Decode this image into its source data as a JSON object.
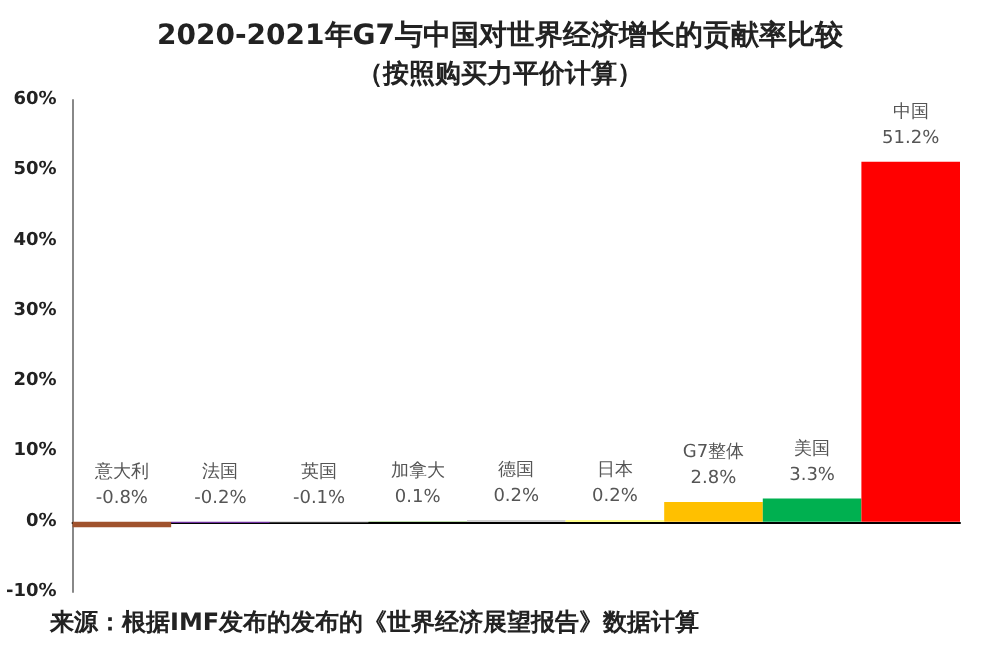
{
  "chart_data": {
    "type": "bar",
    "title": "2020-2021年G7与中国对世界经济增长的贡献率比较",
    "subtitle": "（按照购买力平价计算）",
    "categories": [
      "意大利",
      "法国",
      "英国",
      "加拿大",
      "德国",
      "日本",
      "G7整体",
      "美国",
      "中国"
    ],
    "values": [
      -0.8,
      -0.2,
      -0.1,
      0.1,
      0.2,
      0.2,
      2.8,
      3.3,
      51.2
    ],
    "colors": [
      "#a0522d",
      "#7030a0",
      "#808080",
      "#a9d18e",
      "#bfbfbf",
      "#ffff66",
      "#ffc000",
      "#00b050",
      "#ff0000"
    ],
    "value_labels": [
      "-0.8%",
      "-0.2%",
      "-0.1%",
      "0.1%",
      "0.2%",
      "0.2%",
      "2.8%",
      "3.3%",
      "51.2%"
    ],
    "ylim": [
      -10,
      60
    ],
    "yticks": [
      {
        "value": -10,
        "label": "-10%"
      },
      {
        "value": 0,
        "label": "0%"
      },
      {
        "value": 10,
        "label": "10%"
      },
      {
        "value": 20,
        "label": "20%"
      },
      {
        "value": 30,
        "label": "30%"
      },
      {
        "value": 40,
        "label": "40%"
      },
      {
        "value": 50,
        "label": "50%"
      },
      {
        "value": 60,
        "label": "60%"
      }
    ],
    "tick_labels": "y",
    "grid": false,
    "annotations": [
      "来源：根据IMF发布的发布的《世界经济展望报告》数据计算"
    ]
  }
}
